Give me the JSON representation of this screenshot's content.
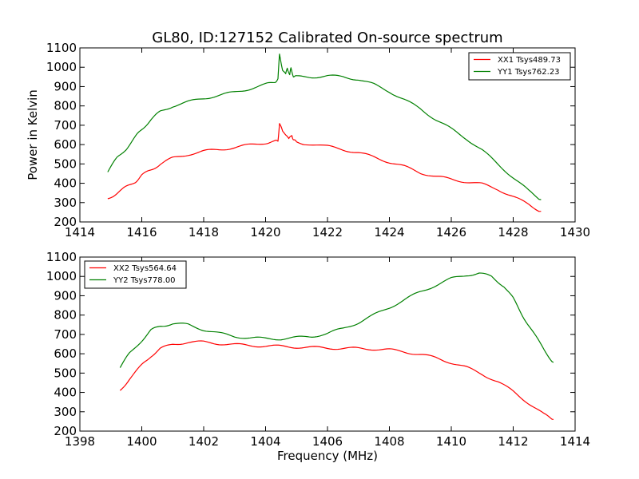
{
  "chart_data": [
    {
      "type": "line",
      "title": "GL80, ID:127152 Calibrated On-source spectrum",
      "xlabel": "",
      "ylabel": "Power in Kelvin",
      "xlim": [
        1414,
        1430
      ],
      "ylim": [
        200,
        1100
      ],
      "xticks": [
        "1414",
        "1416",
        "1418",
        "1420",
        "1422",
        "1424",
        "1426",
        "1428",
        "1430"
      ],
      "yticks": [
        "200",
        "300",
        "400",
        "500",
        "600",
        "700",
        "800",
        "900",
        "1000",
        "1100"
      ],
      "legend_position": "top-right",
      "grid": false,
      "series": [
        {
          "name": "XX1 Tsys489.73",
          "color": "#ff0000",
          "x": [
            1414.9,
            1415.2,
            1415.5,
            1415.8,
            1416.0,
            1416.3,
            1416.6,
            1417.0,
            1417.5,
            1418.0,
            1418.5,
            1419.0,
            1419.5,
            1420.0,
            1420.3,
            1420.4,
            1420.45,
            1420.55,
            1420.7,
            1420.75,
            1420.85,
            1420.9,
            1421.0,
            1421.3,
            1422.0,
            1422.5,
            1423.0,
            1423.5,
            1424.0,
            1424.5,
            1425.0,
            1425.5,
            1426.0,
            1426.5,
            1427.0,
            1427.5,
            1428.0,
            1428.5,
            1428.9
          ],
          "y": [
            320,
            350,
            380,
            410,
            440,
            470,
            500,
            530,
            550,
            565,
            575,
            585,
            598,
            610,
            615,
            620,
            710,
            665,
            650,
            625,
            650,
            625,
            610,
            605,
            590,
            575,
            558,
            535,
            510,
            485,
            455,
            435,
            420,
            408,
            395,
            370,
            330,
            290,
            255
          ]
        },
        {
          "name": "YY1 Tsys762.23",
          "color": "#008000",
          "x": [
            1414.9,
            1415.2,
            1415.5,
            1415.8,
            1416.0,
            1416.3,
            1416.6,
            1417.0,
            1417.5,
            1418.0,
            1418.5,
            1419.0,
            1419.5,
            1420.0,
            1420.3,
            1420.4,
            1420.45,
            1420.55,
            1420.65,
            1420.7,
            1420.78,
            1420.82,
            1420.9,
            1421.0,
            1421.5,
            1422.0,
            1422.5,
            1423.0,
            1423.5,
            1424.0,
            1424.5,
            1425.0,
            1425.5,
            1426.0,
            1426.5,
            1427.0,
            1427.5,
            1428.0,
            1428.5,
            1428.9
          ],
          "y": [
            460,
            530,
            580,
            640,
            680,
            730,
            770,
            800,
            820,
            840,
            855,
            870,
            890,
            910,
            925,
            940,
            1065,
            990,
            960,
            1000,
            960,
            995,
            955,
            950,
            950,
            955,
            950,
            938,
            910,
            875,
            830,
            785,
            730,
            680,
            630,
            570,
            500,
            430,
            360,
            315
          ]
        }
      ]
    },
    {
      "type": "line",
      "title": "",
      "xlabel": "Frequency (MHz)",
      "ylabel": "",
      "xlim": [
        1398,
        1414
      ],
      "ylim": [
        200,
        1100
      ],
      "xticks": [
        "1398",
        "1400",
        "1402",
        "1404",
        "1406",
        "1408",
        "1410",
        "1412",
        "1414"
      ],
      "yticks": [
        "200",
        "300",
        "400",
        "500",
        "600",
        "700",
        "800",
        "900",
        "1000",
        "1100"
      ],
      "legend_position": "top-left",
      "grid": false,
      "series": [
        {
          "name": "XX2 Tsys564.64",
          "color": "#ff0000",
          "x": [
            1399.3,
            1399.6,
            1400.0,
            1400.3,
            1400.6,
            1401.0,
            1401.5,
            1402.0,
            1402.5,
            1403.0,
            1403.5,
            1404.0,
            1404.5,
            1405.0,
            1405.5,
            1406.0,
            1406.5,
            1407.0,
            1407.5,
            1408.0,
            1408.5,
            1409.0,
            1409.5,
            1410.0,
            1410.5,
            1411.0,
            1411.5,
            1412.0,
            1412.5,
            1413.0,
            1413.3
          ],
          "y": [
            410,
            470,
            540,
            590,
            625,
            650,
            660,
            660,
            653,
            647,
            643,
            640,
            638,
            635,
            632,
            630,
            628,
            627,
            625,
            620,
            610,
            597,
            578,
            555,
            528,
            495,
            455,
            405,
            345,
            285,
            260
          ]
        },
        {
          "name": "YY2 Tsys778.00",
          "color": "#008000",
          "x": [
            1399.3,
            1399.6,
            1400.0,
            1400.3,
            1400.6,
            1401.0,
            1401.5,
            1402.0,
            1402.5,
            1403.0,
            1403.5,
            1404.0,
            1404.5,
            1405.0,
            1405.5,
            1406.0,
            1406.5,
            1407.0,
            1407.5,
            1408.0,
            1408.5,
            1409.0,
            1409.5,
            1410.0,
            1410.5,
            1410.9,
            1411.3,
            1411.7,
            1412.0,
            1412.3,
            1412.6,
            1413.0,
            1413.3
          ],
          "y": [
            530,
            600,
            670,
            720,
            745,
            755,
            750,
            725,
            705,
            690,
            682,
            678,
            678,
            683,
            690,
            705,
            730,
            762,
            800,
            840,
            880,
            920,
            955,
            988,
            1008,
            1015,
            1000,
            950,
            885,
            800,
            720,
            620,
            555
          ]
        }
      ]
    }
  ]
}
